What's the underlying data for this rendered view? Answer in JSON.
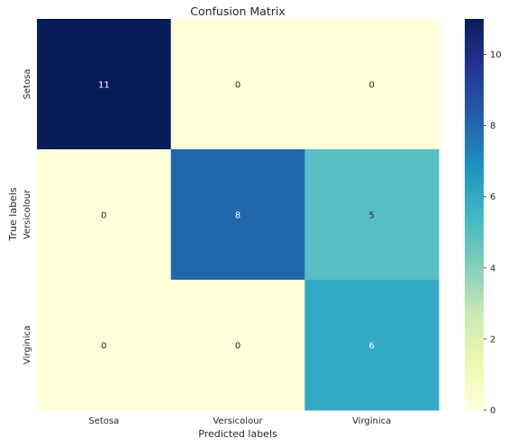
{
  "chart_data": {
    "type": "heatmap",
    "title": "Confusion Matrix",
    "xlabel": "Predicted labels",
    "ylabel": "True labels",
    "x_categories": [
      "Setosa",
      "Versicolour",
      "Virginica"
    ],
    "y_categories": [
      "Setosa",
      "Versicolour",
      "Virginica"
    ],
    "values": [
      [
        11,
        0,
        0
      ],
      [
        0,
        8,
        5
      ],
      [
        0,
        0,
        6
      ]
    ],
    "colormap": "YlGnBu",
    "vmin": 0,
    "vmax": 11,
    "colorbar_ticks": [
      0,
      2,
      4,
      6,
      8,
      10
    ]
  },
  "colors": {
    "text_dark": "#262626",
    "text_light": "#ffffff"
  }
}
